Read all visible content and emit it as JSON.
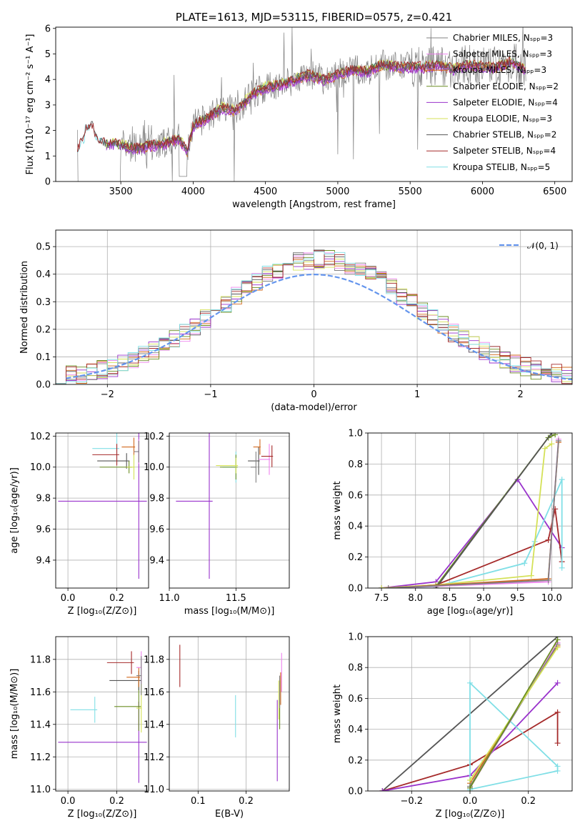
{
  "colors": {
    "ChabrierMILES": "#808080",
    "SalpeterMILES": "#ee82ee",
    "KroupaMILES": "#d2691e",
    "ChabrierELODIE": "#6b8e23",
    "SalpeterELODIE": "#9932cc",
    "KroupaELODIE": "#d4e157",
    "ChabrierSTELIB": "#555555",
    "SalpeterSTELIB": "#a52a2a",
    "KroupaSTELIB": "#80dfe6",
    "normal": "#6495ed"
  },
  "chart_data": [
    {
      "id": "spectrum",
      "type": "line",
      "title": "PLATE=1613, MJD=53115, FIBERID=0575, z=0.421",
      "xlabel": "wavelength [Angstrom, rest frame]",
      "ylabel": "Flux [fλ10⁻¹⁷ erg cm⁻² s⁻¹ A⁻¹]",
      "xlim": [
        3050,
        6620
      ],
      "ylim": [
        0,
        6.05
      ],
      "xticks": [
        "3500",
        "4000",
        "4500",
        "5000",
        "5500",
        "6000",
        "6500"
      ],
      "yticks": [
        "0",
        "1",
        "2",
        "3",
        "4",
        "5",
        "6"
      ],
      "legend_position": "top-right",
      "legend": [
        {
          "label": "Chabrier MILES, Nₛₚₚ=3",
          "color": "#808080"
        },
        {
          "label": "Salpeter MILES, Nₛₚₚ=3",
          "color": "#ee82ee"
        },
        {
          "label": "Kroupa MILES, Nₛₚₚ=3",
          "color": "#d2691e"
        },
        {
          "label": "Chabrier ELODIE, Nₛₚₚ=2",
          "color": "#6b8e23"
        },
        {
          "label": "Salpeter ELODIE, Nₛₚₚ=4",
          "color": "#9932cc"
        },
        {
          "label": "Kroupa ELODIE, Nₛₚₚ=3",
          "color": "#d4e157"
        },
        {
          "label": "Chabrier STELIB, Nₛₚₚ=2",
          "color": "#555555"
        },
        {
          "label": "Salpeter STELIB, Nₛₚₚ=4",
          "color": "#a52a2a"
        },
        {
          "label": "Kroupa STELIB, Nₛₚₚ=5",
          "color": "#80dfe6"
        }
      ],
      "anchors": [
        [
          3200,
          1.3
        ],
        [
          3260,
          1.8
        ],
        [
          3300,
          1.9
        ],
        [
          3350,
          1.6
        ],
        [
          3400,
          1.5
        ],
        [
          3450,
          1.5
        ],
        [
          3500,
          1.45
        ],
        [
          3600,
          1.3
        ],
        [
          3700,
          1.4
        ],
        [
          3800,
          1.5
        ],
        [
          3900,
          1.7
        ],
        [
          3960,
          1.2
        ],
        [
          4000,
          2.2
        ],
        [
          4100,
          2.5
        ],
        [
          4200,
          2.9
        ],
        [
          4300,
          2.8
        ],
        [
          4400,
          3.4
        ],
        [
          4500,
          3.7
        ],
        [
          4600,
          3.8
        ],
        [
          4700,
          4.0
        ],
        [
          4800,
          4.2
        ],
        [
          4900,
          4.0
        ],
        [
          5000,
          4.2
        ],
        [
          5100,
          4.4
        ],
        [
          5200,
          4.3
        ],
        [
          5300,
          4.6
        ],
        [
          5400,
          4.5
        ],
        [
          5500,
          4.5
        ],
        [
          5600,
          4.5
        ],
        [
          5700,
          4.6
        ],
        [
          5800,
          4.4
        ],
        [
          5900,
          4.6
        ],
        [
          6000,
          4.5
        ],
        [
          6100,
          4.5
        ],
        [
          6200,
          4.7
        ],
        [
          6300,
          4.4
        ]
      ]
    },
    {
      "id": "residuals",
      "type": "line",
      "xlabel": "(data-model)/error",
      "ylabel": "Normed distribution",
      "xlim": [
        -2.5,
        2.5
      ],
      "ylim": [
        0,
        0.56
      ],
      "xticks": [
        "−2",
        "−1",
        "0",
        "1",
        "2"
      ],
      "yticks": [
        "0.0",
        "0.1",
        "0.2",
        "0.3",
        "0.4",
        "0.5"
      ],
      "legend": [
        {
          "label": "𝒩(0, 1)",
          "color": "#6495ed"
        }
      ],
      "histogram_approx": {
        "bin_width": 0.1,
        "shape": "normal-like",
        "peak": 0.45,
        "peak_x": 0.05
      }
    },
    {
      "id": "age-vs-Z",
      "type": "scatter",
      "xlabel": "Z [log₁₀(Z/Z⊙)]",
      "ylabel": "age  [log₁₀(age/yr)]",
      "xlim": [
        -0.05,
        0.33
      ],
      "ylim": [
        9.22,
        10.22
      ],
      "xticks": [
        "0.0",
        "0.2"
      ],
      "yticks": [
        "9.4",
        "9.6",
        "9.8",
        "10.0",
        "10.2"
      ],
      "points": [
        {
          "series": "SalpeterELODIE",
          "x": 0.29,
          "xerr": 0.33,
          "y": 9.78,
          "yerr": 0.5
        },
        {
          "series": "KroupaSTELIB",
          "x": 0.2,
          "xerr": 0.1,
          "y": 10.12,
          "yerr": 0.1
        },
        {
          "series": "ChabrierSTELIB",
          "x": 0.24,
          "xerr": 0.12,
          "y": 10.04,
          "yerr": 0.05
        },
        {
          "series": "SalpeterSTELIB",
          "x": 0.2,
          "xerr": 0.1,
          "y": 10.08,
          "yerr": 0.07
        },
        {
          "series": "KroupaMILES",
          "x": 0.27,
          "xerr": 0.05,
          "y": 10.13,
          "yerr": 0.06
        },
        {
          "series": "ChabrierELODIE",
          "x": 0.25,
          "xerr": 0.12,
          "y": 10.0,
          "yerr": 0.04
        },
        {
          "series": "KroupaELODIE",
          "x": 0.27,
          "xerr": 0.03,
          "y": 10.0,
          "yerr": 0.08
        },
        {
          "series": "SalpeterMILES",
          "x": 0.29,
          "xerr": 0.02,
          "y": 10.1,
          "yerr": 0.08
        },
        {
          "series": "ChabrierMILES",
          "x": 0.29,
          "xerr": 0.02,
          "y": 10.1,
          "yerr": 0.07
        }
      ]
    },
    {
      "id": "age-vs-mass",
      "type": "scatter",
      "xlabel": "mass [log₁₀(M/M⊙)]",
      "xlim": [
        11.0,
        11.9
      ],
      "ylim": [
        9.22,
        10.22
      ],
      "xticks": [
        "11.0",
        "11.5"
      ],
      "yticks": [
        "9.4",
        "9.6",
        "9.8",
        "10.0",
        "10.2"
      ],
      "points": [
        {
          "series": "SalpeterELODIE",
          "x": 11.3,
          "xerr": 0.25,
          "y": 9.78,
          "yerr": 0.5
        },
        {
          "series": "KroupaSTELIB",
          "x": 11.5,
          "xerr": 0.1,
          "y": 10.0,
          "yerr": 0.1
        },
        {
          "series": "ChabrierELODIE",
          "x": 11.5,
          "xerr": 0.12,
          "y": 10.0,
          "yerr": 0.08
        },
        {
          "series": "KroupaELODIE",
          "x": 11.5,
          "xerr": 0.15,
          "y": 10.01,
          "yerr": 0.05
        },
        {
          "series": "ChabrierSTELIB",
          "x": 11.67,
          "xerr": 0.08,
          "y": 10.04,
          "yerr": 0.09
        },
        {
          "series": "KroupaMILES",
          "x": 11.68,
          "xerr": 0.05,
          "y": 10.13,
          "yerr": 0.05
        },
        {
          "series": "SalpeterMILES",
          "x": 11.75,
          "xerr": 0.08,
          "y": 10.05,
          "yerr": 0.1
        },
        {
          "series": "SalpeterSTELIB",
          "x": 11.77,
          "xerr": 0.08,
          "y": 10.07,
          "yerr": 0.07
        },
        {
          "series": "ChabrierMILES",
          "x": 11.65,
          "xerr": 0.04,
          "y": 10.0,
          "yerr": 0.1
        }
      ]
    },
    {
      "id": "massweight-vs-age",
      "type": "line",
      "xlabel": "age  [log₁₀(age/yr)]",
      "ylabel": "mass weight",
      "xlim": [
        7.3,
        10.3
      ],
      "ylim": [
        0,
        1
      ],
      "xticks": [
        "7.5",
        "8.0",
        "8.5",
        "9.0",
        "9.5",
        "10.0"
      ],
      "yticks": [
        "0.0",
        "0.2",
        "0.4",
        "0.6",
        "0.8",
        "1.0"
      ],
      "series": [
        {
          "name": "SalpeterELODIE",
          "x": [
            7.5,
            8.3,
            9.5,
            10.15
          ],
          "y": [
            0.0,
            0.04,
            0.7,
            0.26
          ]
        },
        {
          "name": "SalpeterSTELIB",
          "x": [
            7.5,
            8.3,
            9.95,
            10.05,
            10.15
          ],
          "y": [
            0.0,
            0.02,
            0.31,
            0.51,
            0.17
          ]
        },
        {
          "name": "KroupaSTELIB",
          "x": [
            7.5,
            8.3,
            9.6,
            9.75,
            10.15,
            10.15
          ],
          "y": [
            0.0,
            0.01,
            0.16,
            0.3,
            0.7,
            0.13
          ]
        },
        {
          "name": "KroupaELODIE",
          "x": [
            7.5,
            8.3,
            9.7,
            9.9,
            10.0
          ],
          "y": [
            0.0,
            0.02,
            0.08,
            0.9,
            0.93
          ]
        },
        {
          "name": "ChabrierELODIE",
          "x": [
            8.3,
            9.95,
            10.05
          ],
          "y": [
            0.01,
            0.97,
            0.99
          ]
        },
        {
          "name": "ChabrierSTELIB",
          "x": [
            8.3,
            10.0
          ],
          "y": [
            0.0,
            1.0
          ]
        },
        {
          "name": "KroupaMILES",
          "x": [
            7.6,
            9.95,
            10.1
          ],
          "y": [
            0.0,
            0.06,
            0.94
          ]
        },
        {
          "name": "SalpeterMILES",
          "x": [
            7.6,
            9.95,
            10.1
          ],
          "y": [
            0.0,
            0.04,
            0.96
          ]
        },
        {
          "name": "ChabrierMILES",
          "x": [
            7.6,
            9.95,
            10.1
          ],
          "y": [
            0.0,
            0.05,
            0.95
          ]
        }
      ]
    },
    {
      "id": "mass-vs-Z",
      "type": "scatter",
      "xlabel": "Z [log₁₀(Z/Z⊙)]",
      "ylabel": "mass [log₁₀(M/M⊙)]",
      "xlim": [
        -0.05,
        0.33
      ],
      "ylim": [
        10.99,
        11.94
      ],
      "xticks": [
        "0.0",
        "0.2"
      ],
      "yticks": [
        "11.0",
        "11.2",
        "11.4",
        "11.6",
        "11.8"
      ],
      "points": [
        {
          "series": "SalpeterELODIE",
          "x": 0.29,
          "xerr": 0.33,
          "y": 11.29,
          "yerr": 0.25
        },
        {
          "series": "KroupaSTELIB",
          "x": 0.11,
          "xerr": 0.1,
          "y": 11.49,
          "yerr": 0.08
        },
        {
          "series": "ChabrierELODIE",
          "x": 0.29,
          "xerr": 0.1,
          "y": 11.51,
          "yerr": 0.15
        },
        {
          "series": "ChabrierSTELIB",
          "x": 0.29,
          "xerr": 0.12,
          "y": 11.67,
          "yerr": 0.06
        },
        {
          "series": "KroupaMILES",
          "x": 0.29,
          "xerr": 0.05,
          "y": 11.69,
          "yerr": 0.06
        },
        {
          "series": "SalpeterSTELIB",
          "x": 0.26,
          "xerr": 0.1,
          "y": 11.78,
          "yerr": 0.07
        },
        {
          "series": "KroupaELODIE",
          "x": 0.3,
          "xerr": 0.02,
          "y": 11.5,
          "yerr": 0.15
        },
        {
          "series": "SalpeterMILES",
          "x": 0.3,
          "xerr": 0.02,
          "y": 11.75,
          "yerr": 0.1
        },
        {
          "series": "ChabrierMILES",
          "x": 0.3,
          "xerr": 0.02,
          "y": 11.7,
          "yerr": 0.12
        }
      ]
    },
    {
      "id": "mass-vs-ebv",
      "type": "scatter",
      "xlabel": "E(B-V)",
      "xlim": [
        0.04,
        0.29
      ],
      "ylim": [
        10.99,
        11.94
      ],
      "xticks": [
        "0.1",
        "0.2"
      ],
      "yticks": [
        "11.0",
        "11.2",
        "11.4",
        "11.6",
        "11.8"
      ],
      "points": [
        {
          "series": "SalpeterSTELIB",
          "x": 0.062,
          "y": 11.76,
          "yerr": 0.13
        },
        {
          "series": "KroupaSTELIB",
          "x": 0.178,
          "y": 11.45,
          "yerr": 0.13
        },
        {
          "series": "SalpeterELODIE",
          "x": 0.265,
          "y": 11.3,
          "yerr": 0.25
        },
        {
          "series": "KroupaELODIE",
          "x": 0.268,
          "y": 11.55,
          "yerr": 0.12
        },
        {
          "series": "ChabrierELODIE",
          "x": 0.27,
          "y": 11.52,
          "yerr": 0.15
        },
        {
          "series": "KroupaMILES",
          "x": 0.272,
          "y": 11.62,
          "yerr": 0.1
        },
        {
          "series": "SalpeterMILES",
          "x": 0.274,
          "y": 11.72,
          "yerr": 0.12
        },
        {
          "series": "ChabrierMILES",
          "x": 0.27,
          "y": 11.6,
          "yerr": 0.1
        }
      ]
    },
    {
      "id": "massweight-vs-Z",
      "type": "line",
      "xlabel": "Z [log₁₀(Z/Z⊙)]",
      "ylabel": "mass weight",
      "xlim": [
        -0.35,
        0.35
      ],
      "ylim": [
        0,
        1
      ],
      "xticks": [
        "−0.2",
        "0.0",
        "0.2"
      ],
      "yticks": [
        "0.0",
        "0.2",
        "0.4",
        "0.6",
        "0.8",
        "1.0"
      ],
      "series": [
        {
          "name": "ChabrierSTELIB",
          "x": [
            -0.3,
            0.3
          ],
          "y": [
            0.0,
            1.0
          ]
        },
        {
          "name": "SalpeterSTELIB",
          "x": [
            -0.3,
            0.0,
            0.3,
            0.3
          ],
          "y": [
            0.0,
            0.17,
            0.51,
            0.31
          ]
        },
        {
          "name": "SalpeterELODIE",
          "x": [
            -0.3,
            0.0,
            0.3
          ],
          "y": [
            0.0,
            0.1,
            0.7
          ]
        },
        {
          "name": "KroupaSTELIB",
          "x": [
            0.0,
            0.0,
            0.3,
            0.3,
            0.0
          ],
          "y": [
            0.0,
            0.7,
            0.16,
            0.13,
            0.01
          ]
        },
        {
          "name": "KroupaMILES",
          "x": [
            0.0,
            0.3
          ],
          "y": [
            0.05,
            0.94
          ]
        },
        {
          "name": "SalpeterMILES",
          "x": [
            0.0,
            0.3
          ],
          "y": [
            0.02,
            0.96
          ]
        },
        {
          "name": "ChabrierMILES",
          "x": [
            0.0,
            0.3
          ],
          "y": [
            0.03,
            0.95
          ]
        },
        {
          "name": "KroupaELODIE",
          "x": [
            0.0,
            0.3
          ],
          "y": [
            0.07,
            0.93
          ]
        },
        {
          "name": "ChabrierELODIE",
          "x": [
            0.0,
            0.3
          ],
          "y": [
            0.02,
            0.98
          ]
        }
      ]
    }
  ]
}
